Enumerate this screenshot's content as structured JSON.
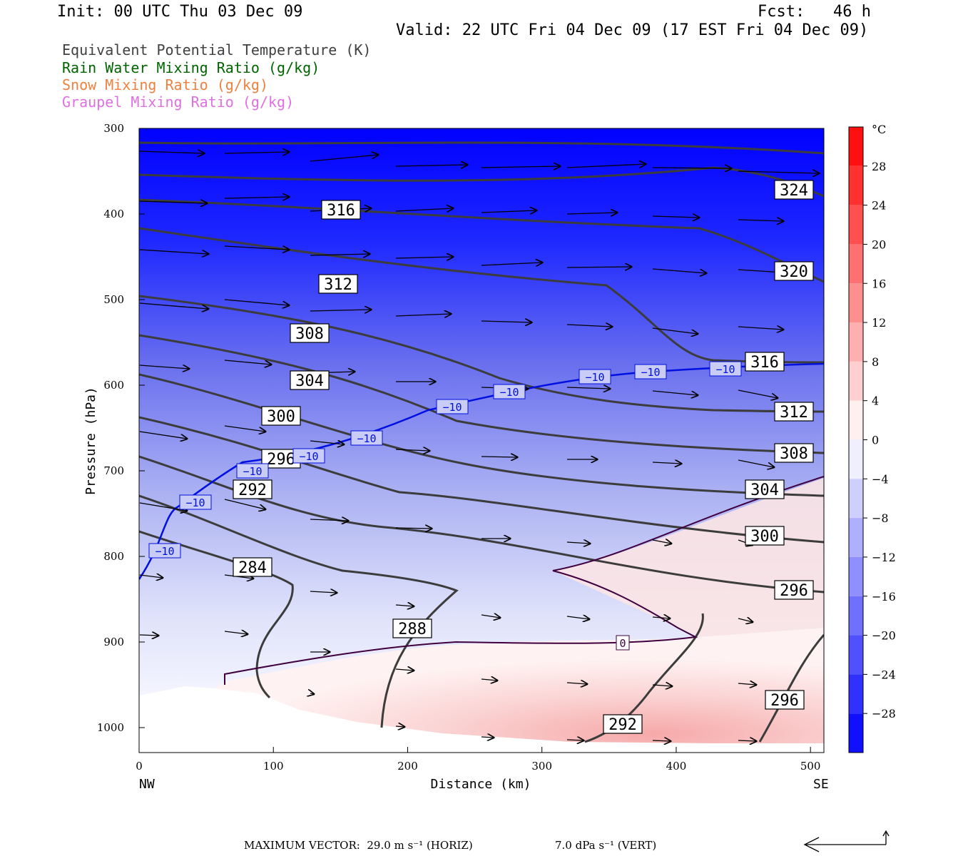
{
  "header": {
    "init": "Init: 00 UTC Thu 03 Dec 09",
    "fcst": "Fcst:   46 h",
    "valid": "Valid: 22 UTC Fri 04 Dec 09 (17 EST Fri 04 Dec 09)"
  },
  "fields": [
    {
      "label": "Equivalent Potential Temperature (K)",
      "color": "#404040"
    },
    {
      "label": "Rain Water Mixing Ratio (g/kg)",
      "color": "#006400"
    },
    {
      "label": "Snow Mixing Ratio (g/kg)",
      "color": "#f08040"
    },
    {
      "label": "Graupel Mixing Ratio (g/kg)",
      "color": "#e070e0"
    }
  ],
  "chart_data": {
    "type": "heatmap",
    "xlabel": "Distance (km)",
    "ylabel": "Pressure (hPa)",
    "xlim": [
      0,
      510
    ],
    "ylim": [
      1030,
      300
    ],
    "x_ticks": [
      "0",
      "100",
      "200",
      "300",
      "400",
      "500"
    ],
    "y_ticks": [
      "300",
      "400",
      "500",
      "600",
      "700",
      "800",
      "900",
      "1000"
    ],
    "left_end": "NW",
    "right_end": "SE",
    "colorbar": {
      "unit": "°C",
      "ticks": [
        "28",
        "24",
        "20",
        "16",
        "12",
        "8",
        "4",
        "0",
        "−4",
        "−8",
        "−12",
        "−16",
        "−20",
        "−24",
        "−28"
      ],
      "tick_values": [
        28,
        24,
        20,
        16,
        12,
        8,
        4,
        0,
        -4,
        -8,
        -12,
        -16,
        -20,
        -24,
        -28
      ],
      "range": [
        -32,
        32
      ],
      "cold_color": "#0000ff",
      "warm_color": "#ff0000"
    },
    "theta_e_labels": [
      "324",
      "320",
      "316",
      "316",
      "312",
      "312",
      "308",
      "308",
      "304",
      "304",
      "300",
      "300",
      "296",
      "296",
      "296",
      "292",
      "292",
      "288",
      "284"
    ],
    "isotherm_labels": [
      "−10",
      "−10",
      "−10",
      "−10",
      "−10",
      "−10",
      "−10",
      "−10",
      "−10",
      "−10",
      "0"
    ],
    "max_vector_label": "MAXIMUM VECTOR:",
    "max_horiz": "29.0 m s⁻¹ (HORIZ)",
    "max_vert": "7.0 dPa s⁻¹ (VERT)"
  }
}
